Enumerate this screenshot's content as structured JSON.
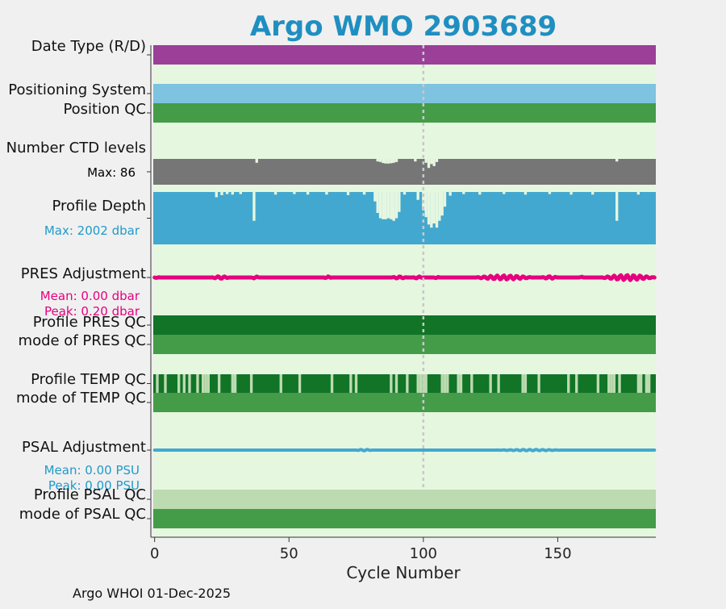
{
  "chart_data": {
    "type": "bar",
    "title": "Argo WMO 2903689",
    "xlabel": "Cycle Number",
    "xlim": [
      -0.5,
      186.5
    ],
    "xticks": [
      0,
      50,
      100,
      150
    ],
    "reference_line_x": 100,
    "footer": "Argo WHOI 01-Dec-2025",
    "rows": [
      {
        "label": "Date Type (R/D)",
        "type": "band",
        "segments": [
          {
            "from": 0,
            "to": 186,
            "color": "#9b3f98"
          }
        ]
      },
      {
        "label": "Positioning System",
        "type": "band",
        "segments": [
          {
            "from": 0,
            "to": 186,
            "color": "#7ec3df"
          }
        ]
      },
      {
        "label": "Position QC",
        "type": "band",
        "segments": [
          {
            "from": 0,
            "to": 186,
            "color": "#449c48"
          }
        ]
      },
      {
        "label": "Number CTD levels",
        "type": "profile_bar",
        "note": "Max: 86",
        "note_color": "#000000",
        "max": 86,
        "color": "#767676",
        "dips": [
          {
            "cycle": 38,
            "pct": 85
          },
          {
            "cycle": 83,
            "pct": 90
          },
          {
            "cycle": 84,
            "pct": 88
          },
          {
            "cycle": 85,
            "pct": 84
          },
          {
            "cycle": 86,
            "pct": 82
          },
          {
            "cycle": 87,
            "pct": 82
          },
          {
            "cycle": 88,
            "pct": 83
          },
          {
            "cycle": 89,
            "pct": 85
          },
          {
            "cycle": 90,
            "pct": 88
          },
          {
            "cycle": 97,
            "pct": 90
          },
          {
            "cycle": 101,
            "pct": 85
          },
          {
            "cycle": 102,
            "pct": 65
          },
          {
            "cycle": 103,
            "pct": 80
          },
          {
            "cycle": 104,
            "pct": 72
          },
          {
            "cycle": 105,
            "pct": 88
          },
          {
            "cycle": 172,
            "pct": 90
          }
        ]
      },
      {
        "label": "Profile Depth",
        "type": "profile_bar",
        "note": "Max: 2002 dbar",
        "note_color": "#1f9ac9",
        "max": 2002,
        "color": "#43a8cf",
        "dips": [
          {
            "cycle": 23,
            "pct": 90
          },
          {
            "cycle": 25,
            "pct": 94
          },
          {
            "cycle": 27,
            "pct": 96
          },
          {
            "cycle": 29,
            "pct": 95
          },
          {
            "cycle": 32,
            "pct": 96
          },
          {
            "cycle": 37,
            "pct": 45
          },
          {
            "cycle": 45,
            "pct": 95
          },
          {
            "cycle": 52,
            "pct": 96
          },
          {
            "cycle": 57,
            "pct": 95
          },
          {
            "cycle": 64,
            "pct": 95
          },
          {
            "cycle": 72,
            "pct": 94
          },
          {
            "cycle": 78,
            "pct": 95
          },
          {
            "cycle": 82,
            "pct": 82
          },
          {
            "cycle": 83,
            "pct": 60
          },
          {
            "cycle": 84,
            "pct": 50
          },
          {
            "cycle": 85,
            "pct": 48
          },
          {
            "cycle": 86,
            "pct": 48
          },
          {
            "cycle": 87,
            "pct": 50
          },
          {
            "cycle": 88,
            "pct": 48
          },
          {
            "cycle": 89,
            "pct": 45
          },
          {
            "cycle": 90,
            "pct": 50
          },
          {
            "cycle": 91,
            "pct": 62
          },
          {
            "cycle": 93,
            "pct": 95
          },
          {
            "cycle": 98,
            "pct": 85
          },
          {
            "cycle": 100,
            "pct": 65
          },
          {
            "cycle": 101,
            "pct": 52
          },
          {
            "cycle": 102,
            "pct": 38
          },
          {
            "cycle": 103,
            "pct": 32
          },
          {
            "cycle": 104,
            "pct": 40
          },
          {
            "cycle": 105,
            "pct": 32
          },
          {
            "cycle": 106,
            "pct": 45
          },
          {
            "cycle": 107,
            "pct": 55
          },
          {
            "cycle": 108,
            "pct": 72
          },
          {
            "cycle": 110,
            "pct": 93
          },
          {
            "cycle": 115,
            "pct": 96
          },
          {
            "cycle": 121,
            "pct": 95
          },
          {
            "cycle": 130,
            "pct": 96
          },
          {
            "cycle": 138,
            "pct": 95
          },
          {
            "cycle": 147,
            "pct": 96
          },
          {
            "cycle": 155,
            "pct": 95
          },
          {
            "cycle": 163,
            "pct": 95
          },
          {
            "cycle": 172,
            "pct": 45
          },
          {
            "cycle": 180,
            "pct": 95
          }
        ]
      },
      {
        "label": "PRES Adjustment",
        "type": "line_strip",
        "notes": [
          "Mean: 0.00 dbar",
          "Peak: 0.20 dbar"
        ],
        "note_color": "#e6007e",
        "color": "#e6007e",
        "mean": 0.0,
        "peak": 0.2,
        "wiggles": [
          {
            "from": 0,
            "to": 2,
            "amp": 0.2
          },
          {
            "from": 21,
            "to": 28,
            "amp": 0.5
          },
          {
            "from": 36,
            "to": 39,
            "amp": 0.4
          },
          {
            "from": 63,
            "to": 66,
            "amp": 0.4
          },
          {
            "from": 88,
            "to": 94,
            "amp": 0.4
          },
          {
            "from": 96,
            "to": 100,
            "amp": 0.4
          },
          {
            "from": 104,
            "to": 106,
            "amp": 0.3
          },
          {
            "from": 119,
            "to": 141,
            "amp": 0.8
          },
          {
            "from": 144,
            "to": 150,
            "amp": 0.5
          },
          {
            "from": 158,
            "to": 160,
            "amp": 0.3
          },
          {
            "from": 166,
            "to": 186,
            "amp": 1.0
          }
        ]
      },
      {
        "label": "Profile PRES QC",
        "type": "band",
        "segments": [
          {
            "from": 0,
            "to": 186,
            "color": "#117427"
          }
        ]
      },
      {
        "label": "mode of PRES QC",
        "type": "band",
        "segments": [
          {
            "from": 0,
            "to": 186,
            "color": "#449c48"
          }
        ]
      },
      {
        "label": "Profile TEMP QC",
        "type": "band",
        "base_color": "#117427",
        "gap_color": "#bcdbb0",
        "gaps": [
          1,
          4,
          9,
          11,
          13,
          16,
          18,
          19,
          20,
          24,
          29,
          30,
          36,
          47,
          54,
          66,
          73,
          75,
          88,
          90,
          94,
          98,
          99,
          100,
          101,
          107,
          108,
          109,
          113,
          114,
          118,
          125,
          128,
          137,
          138,
          143,
          154,
          157,
          165,
          169,
          170,
          171,
          173,
          180,
          181,
          183,
          184
        ]
      },
      {
        "label": "mode of TEMP QC",
        "type": "band",
        "segments": [
          {
            "from": 0,
            "to": 186,
            "color": "#449c48"
          }
        ]
      },
      {
        "label": "PSAL Adjustment",
        "type": "line_strip",
        "notes": [
          "Mean: 0.00 PSU",
          "Peak: 0.00 PSU"
        ],
        "note_color": "#1f9ac9",
        "color": "#43a8cf",
        "mean": 0.0,
        "peak": 0.0,
        "wiggles": [
          {
            "from": 75,
            "to": 81,
            "amp": 0.3
          },
          {
            "from": 127,
            "to": 152,
            "amp": 0.25
          }
        ]
      },
      {
        "label": "Profile PSAL QC",
        "type": "band",
        "segments": [
          {
            "from": 0,
            "to": 186,
            "color": "#bcdbb0"
          }
        ]
      },
      {
        "label": "mode of PSAL QC",
        "type": "band",
        "segments": [
          {
            "from": 0,
            "to": 186,
            "color": "#449c48"
          }
        ]
      }
    ]
  },
  "colors": {
    "title": "#1f8fc1",
    "plot_background": "#e6f7e0",
    "page_background": "#f0f0f0",
    "reference_line": "#c8c8c8"
  }
}
